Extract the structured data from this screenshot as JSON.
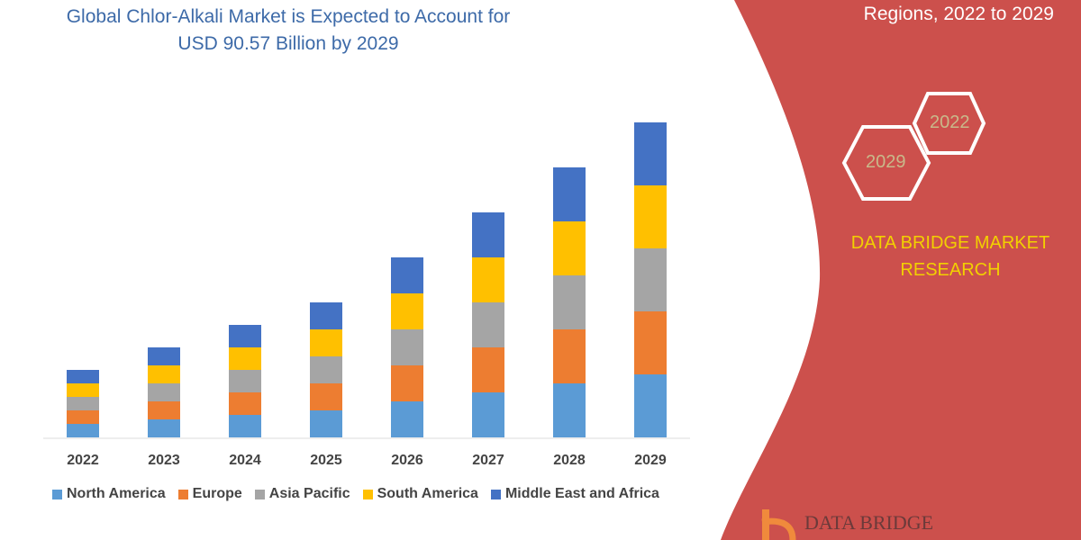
{
  "title": "Global Chlor-Alkali Market is Expected to Account for USD 90.57 Billion by 2029",
  "subtitle": "Regions, 2022 to 2029",
  "brand": "DATA BRIDGE MARKET RESEARCH",
  "hex_labels": [
    "2022",
    "2029"
  ],
  "logo": "DATA BRIDGE",
  "colors": {
    "panel": "#cc504c",
    "brand_text": "#f2d000"
  },
  "chart_data": {
    "type": "bar",
    "stacked": true,
    "categories": [
      "2022",
      "2023",
      "2024",
      "2025",
      "2026",
      "2027",
      "2028",
      "2029"
    ],
    "series": [
      {
        "name": "North America",
        "color": "#5b9bd5",
        "values": [
          15,
          20,
          25,
          30,
          40,
          50,
          60,
          70
        ]
      },
      {
        "name": "Europe",
        "color": "#ed7d31",
        "values": [
          15,
          20,
          25,
          30,
          40,
          50,
          60,
          70
        ]
      },
      {
        "name": "Asia Pacific",
        "color": "#a5a5a5",
        "values": [
          15,
          20,
          25,
          30,
          40,
          50,
          60,
          70
        ]
      },
      {
        "name": "South America",
        "color": "#ffc000",
        "values": [
          15,
          20,
          25,
          30,
          40,
          50,
          60,
          70
        ]
      },
      {
        "name": "Middle East and Africa",
        "color": "#4472c4",
        "values": [
          15,
          20,
          25,
          30,
          40,
          50,
          60,
          70
        ]
      }
    ],
    "ylim": [
      0,
      380
    ],
    "grid": false,
    "legend": "bottom"
  }
}
